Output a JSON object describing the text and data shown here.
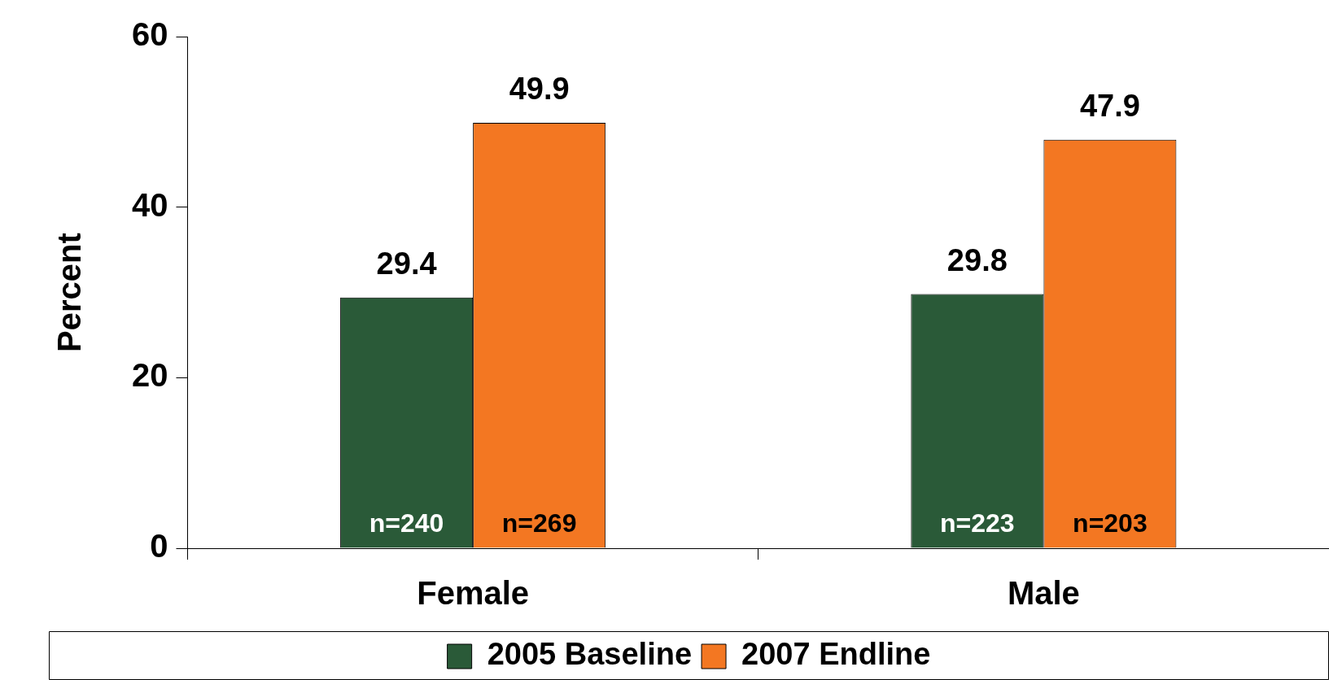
{
  "chart_data": {
    "type": "bar",
    "ylabel": "Percent",
    "categories": [
      "Female",
      "Male"
    ],
    "series": [
      {
        "name": "2005 Baseline",
        "color": "#2a5a38",
        "values": [
          29.4,
          29.8
        ]
      },
      {
        "name": "2007 Endline",
        "color": "#f37722",
        "values": [
          49.9,
          47.9
        ]
      }
    ],
    "ylim": [
      0,
      60
    ],
    "yticks": [
      0,
      20,
      40,
      60
    ],
    "grid": false,
    "legend": "bottom",
    "data_labels": true,
    "annotations": [
      "n=240",
      "n=223",
      "n=269",
      "n=203"
    ]
  }
}
